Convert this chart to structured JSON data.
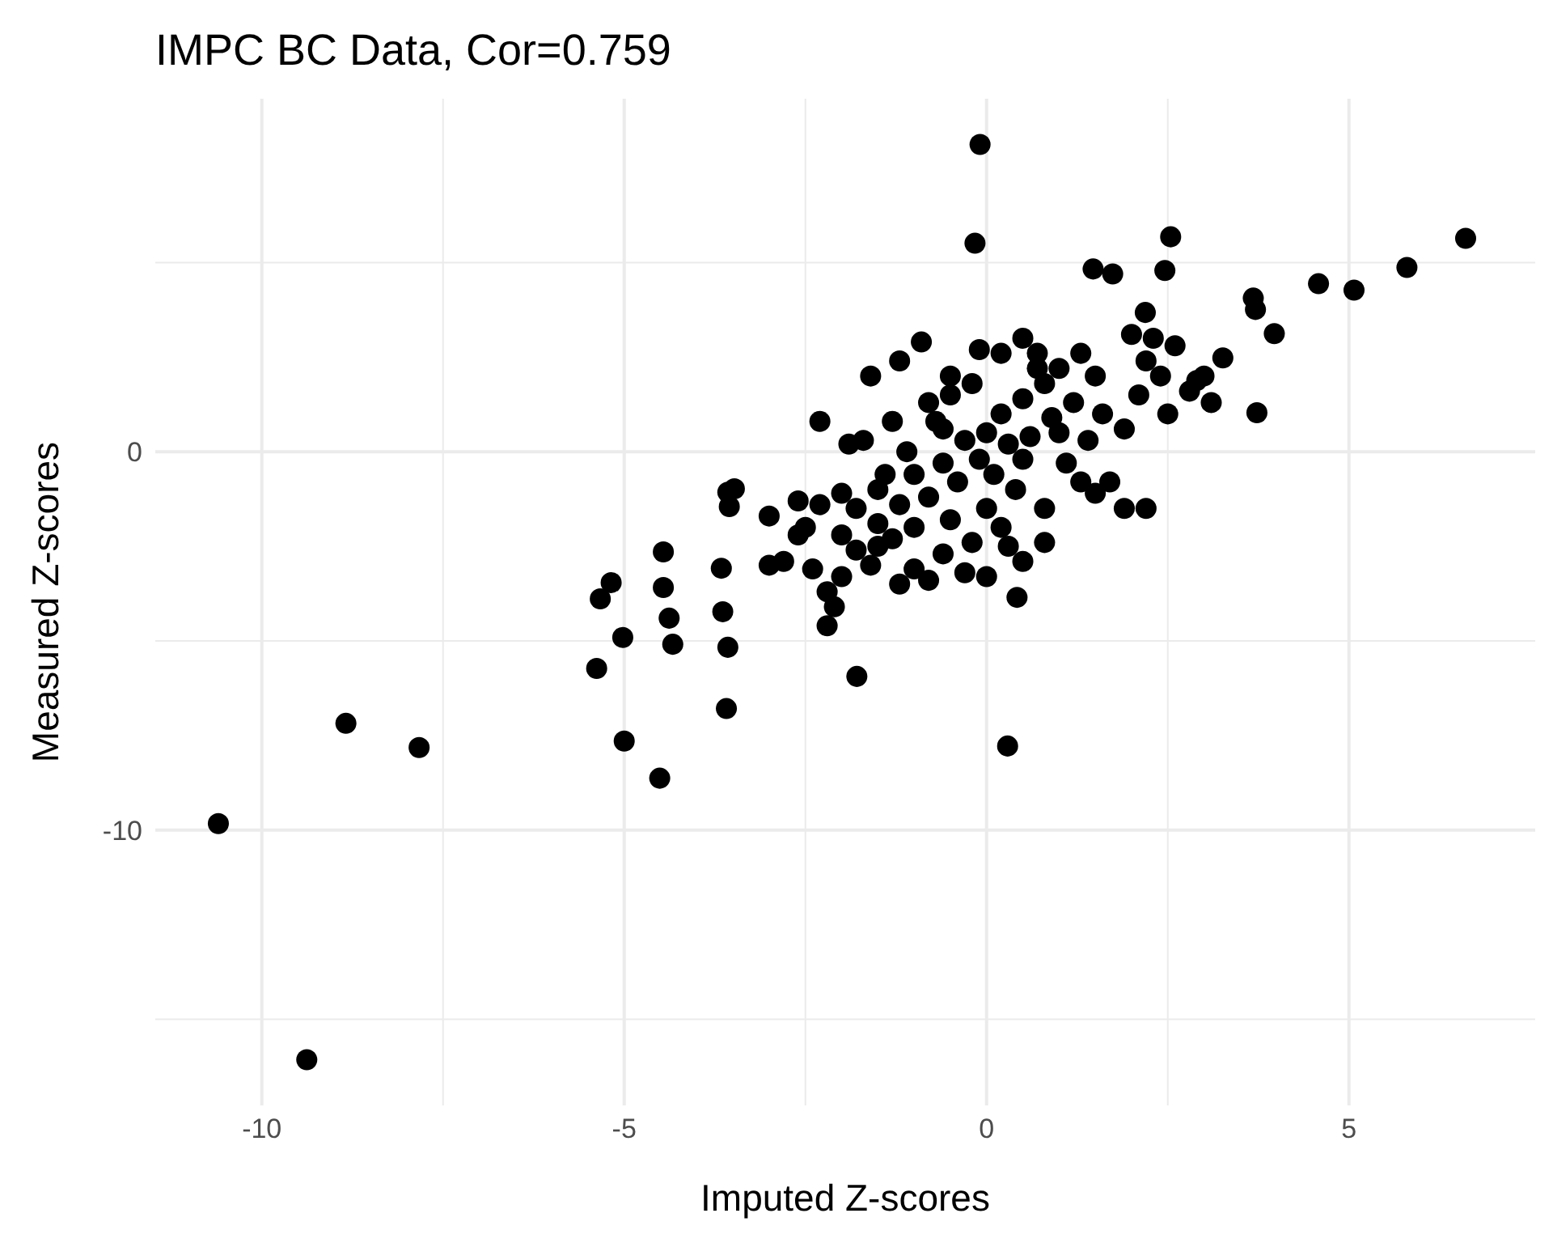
{
  "chart_data": {
    "type": "scatter",
    "title": "IMPC BC Data, Cor=0.759",
    "xlabel": "Imputed Z-scores",
    "ylabel": "Measured Z-scores",
    "xlim": [
      -11.47,
      7.57
    ],
    "ylim": [
      -17.28,
      9.33
    ],
    "xticks": [
      -10,
      {
        "value": -7.5,
        "label": null
      },
      -5,
      {
        "value": -2.5,
        "label": null
      },
      0,
      {
        "value": 2.5,
        "label": null
      },
      5
    ],
    "yticks": [
      {
        "value": -15,
        "label": null
      },
      -10,
      {
        "value": -5,
        "label": null
      },
      0,
      {
        "value": 5,
        "label": null
      }
    ],
    "grid": true,
    "marker": "circle",
    "series": [
      {
        "color": "#000000",
        "x": [
          -10.6,
          -9.38,
          -8.84,
          -7.83,
          -5.38,
          -5.33,
          -5.18,
          -5.02,
          -5.0,
          -4.46,
          -4.46,
          -4.38,
          -4.33,
          -4.51,
          -3.64,
          -3.57,
          -3.59,
          -3.57,
          -3.48,
          -3.55,
          -3.66,
          -1.79,
          0.29,
          0.42,
          -0.09,
          -0.16,
          1.47,
          1.74,
          2.54,
          2.46,
          2.19,
          3.68,
          3.71,
          3.97,
          3.73,
          4.58,
          5.07,
          5.8,
          6.61,
          3.26,
          2.9,
          -3.0,
          -2.8,
          -3.0,
          -2.6,
          -2.4,
          -2.2,
          -2.1,
          -2.2,
          -2.0,
          -2.5,
          -2.3,
          -2.0,
          -1.8,
          -1.6,
          -1.5,
          -1.3,
          -1.2,
          -1.0,
          -0.8,
          -0.6,
          -0.3,
          0.0,
          0.3,
          0.5,
          0.8,
          -2.3,
          -1.9,
          -1.7,
          -1.6,
          -1.2,
          -0.9,
          -0.8,
          -0.5,
          -1.4,
          -1.1,
          -0.7,
          -0.1,
          0.2,
          0.7,
          0.5,
          -1.8,
          -1.5,
          -1.2,
          -1.0,
          -0.8,
          -0.6,
          -0.4,
          -0.3,
          -0.1,
          0.0,
          0.1,
          0.2,
          0.3,
          0.4,
          0.5,
          0.6,
          0.8,
          0.9,
          1.0,
          1.2,
          1.3,
          1.5,
          1.6,
          1.4,
          1.1,
          1.7,
          1.9,
          1.5,
          2.2,
          1.9,
          2.1,
          2.2,
          2.4,
          2.6,
          2.8,
          3.0,
          3.1,
          2.5,
          -0.5,
          -0.2,
          -1.5,
          -1.0,
          -0.5,
          0.0,
          0.5,
          1.0,
          -2.0,
          -2.6,
          -0.2,
          0.2,
          -0.6,
          0.8,
          1.3,
          0.7,
          -1.3,
          2.0,
          2.3
        ],
        "values": [
          -9.83,
          -16.07,
          -7.18,
          -7.82,
          -5.73,
          -3.89,
          -3.46,
          -4.91,
          -7.65,
          -2.65,
          -3.59,
          -4.4,
          -5.09,
          -8.63,
          -4.23,
          -5.17,
          -6.79,
          -1.07,
          -0.98,
          -1.45,
          -3.08,
          -5.94,
          -7.78,
          -3.85,
          8.12,
          5.51,
          4.83,
          4.7,
          5.68,
          4.79,
          3.68,
          4.06,
          3.76,
          3.12,
          1.03,
          4.44,
          4.27,
          4.87,
          5.64,
          2.48,
          1.88,
          -1.7,
          -2.9,
          -3.0,
          -2.2,
          -3.1,
          -3.7,
          -4.1,
          -4.6,
          -3.3,
          -2.0,
          -1.4,
          -1.1,
          -2.6,
          -3.0,
          -1.9,
          -2.3,
          -3.5,
          -3.1,
          -3.4,
          -2.7,
          -3.2,
          -3.3,
          -2.5,
          -2.9,
          -2.4,
          0.8,
          0.2,
          0.3,
          2.0,
          2.4,
          2.9,
          1.3,
          2.0,
          -0.6,
          0.0,
          0.8,
          2.7,
          2.6,
          2.6,
          3.0,
          -1.5,
          -1.0,
          -1.4,
          -0.6,
          -1.2,
          -0.3,
          -0.8,
          0.3,
          -0.2,
          0.5,
          -0.6,
          1.0,
          0.2,
          -1.0,
          1.4,
          0.4,
          1.8,
          0.9,
          2.2,
          1.3,
          2.6,
          2.0,
          1.0,
          0.3,
          -0.3,
          -0.8,
          -1.5,
          -1.1,
          -1.5,
          0.6,
          1.5,
          2.4,
          2.0,
          2.8,
          1.6,
          2.0,
          1.3,
          1.0,
          1.5,
          1.8,
          -2.5,
          -2.0,
          -1.8,
          -1.5,
          -0.2,
          0.5,
          -2.2,
          -1.3,
          -2.4,
          -2.0,
          0.6,
          -1.5,
          -0.8,
          2.2,
          0.8,
          3.1,
          3.0
        ]
      }
    ]
  }
}
